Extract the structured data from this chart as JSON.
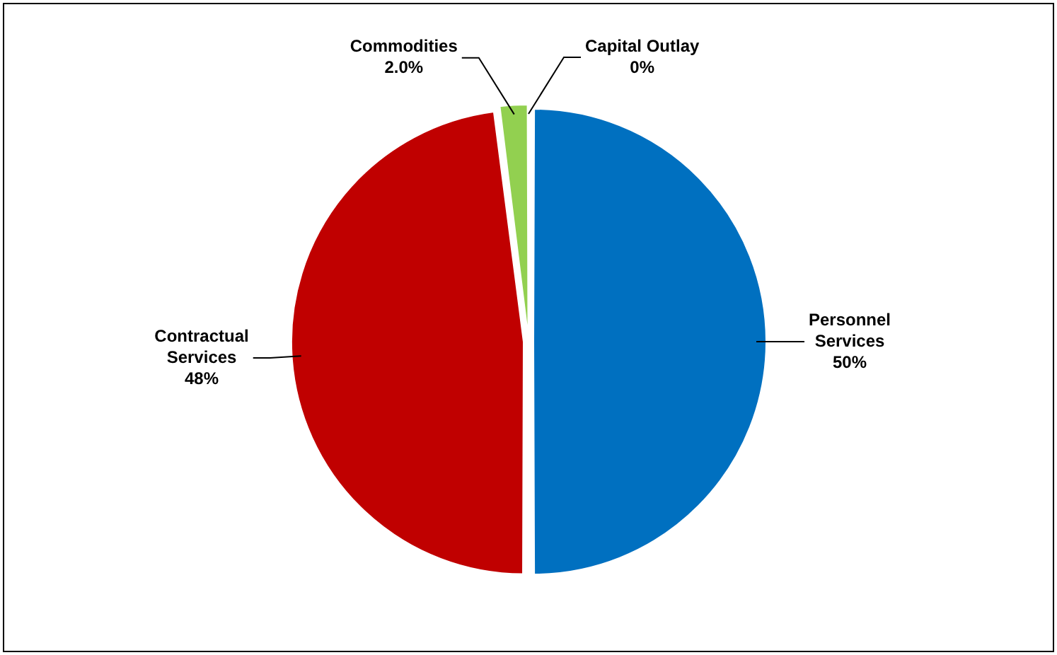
{
  "chart_data": {
    "type": "pie",
    "categories": [
      "Personnel Services",
      "Contractual Services",
      "Commodities",
      "Capital Outlay"
    ],
    "values": [
      50,
      48,
      2.0,
      0
    ],
    "value_labels": [
      "50%",
      "48%",
      "2.0%",
      "0%"
    ],
    "colors": [
      "#0070c0",
      "#c00000",
      "#92d050",
      "#a6a6a6"
    ],
    "legend": false
  }
}
